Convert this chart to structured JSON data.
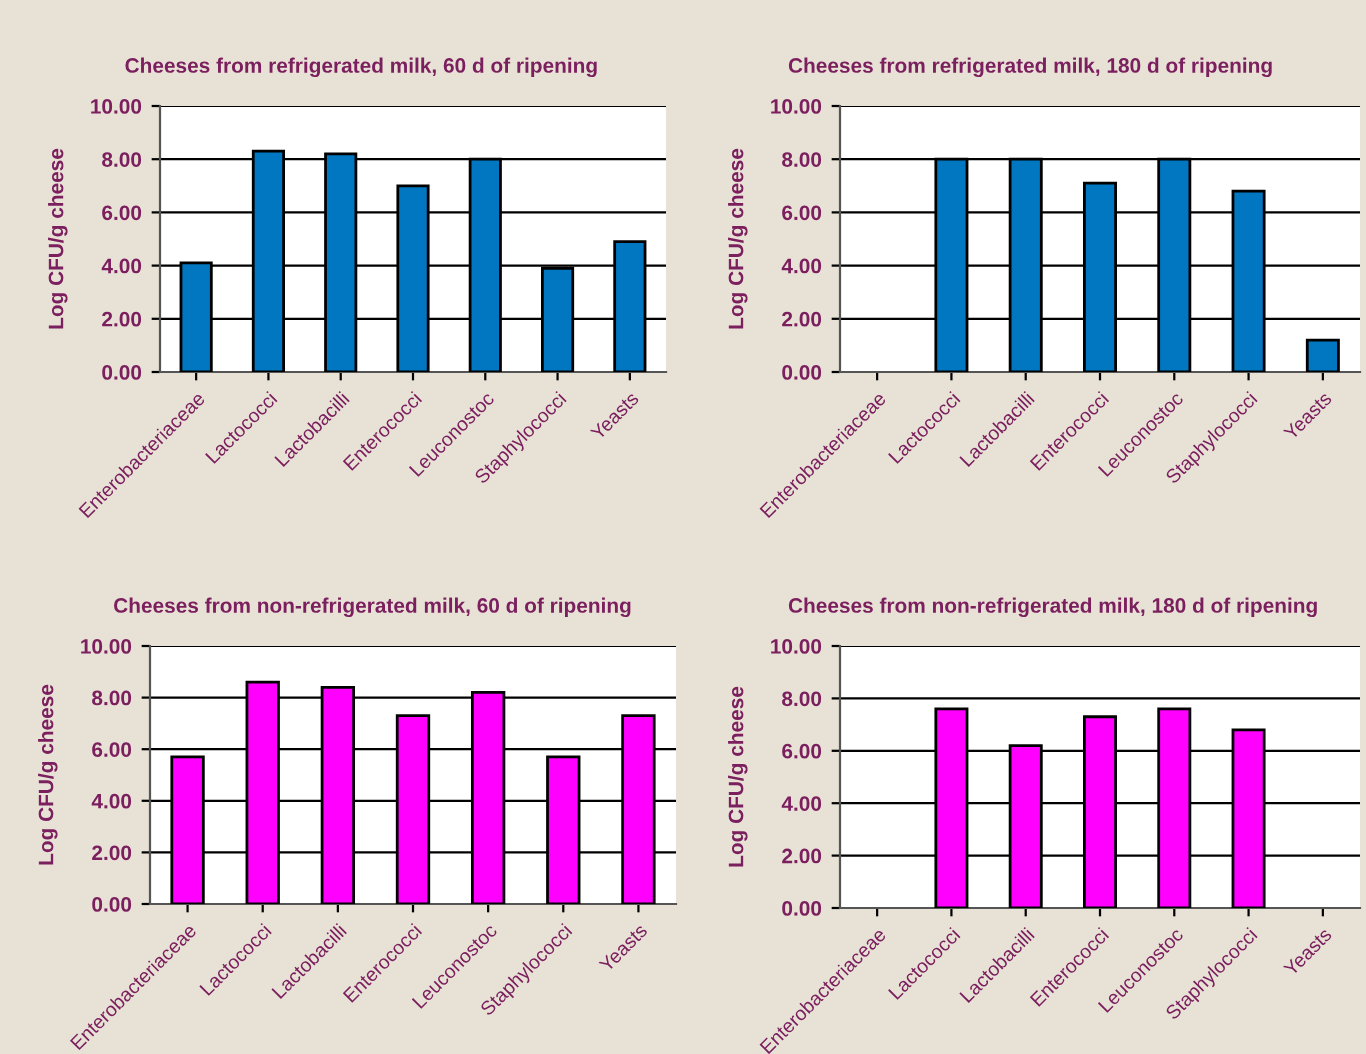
{
  "chart_data": [
    {
      "type": "bar",
      "title": "Cheeses from refrigerated milk, 60 d of ripening",
      "ylabel": "Log CFU/g cheese",
      "categories": [
        "Enterobacteriaceae",
        "Lactococci",
        "Lactobacilli",
        "Enterococci",
        "Leuconostoc",
        "Staphylococci",
        "Yeasts"
      ],
      "values": [
        4.1,
        8.3,
        8.2,
        7.0,
        8.0,
        3.9,
        4.9
      ],
      "color": "#0077c0",
      "ylim": [
        0,
        10
      ],
      "yticks": [
        {
          "value": 0,
          "label": "0.00"
        },
        {
          "value": 2,
          "label": "2.00"
        },
        {
          "value": 4,
          "label": "4.00"
        },
        {
          "value": 6,
          "label": "6.00"
        },
        {
          "value": 8,
          "label": "8.00"
        },
        {
          "value": 10,
          "label": "10.00"
        }
      ],
      "grid": "y"
    },
    {
      "type": "bar",
      "title": "Cheeses from refrigerated milk, 180 d of ripening",
      "ylabel": "Log CFU/g cheese",
      "categories": [
        "Enterobacteriaceae",
        "Lactococci",
        "Lactobacilli",
        "Enterococci",
        "Leuconostoc",
        "Staphylococci",
        "Yeasts"
      ],
      "values": [
        null,
        8.0,
        8.0,
        7.1,
        8.0,
        6.8,
        1.2
      ],
      "color": "#0077c0",
      "ylim": [
        0,
        10
      ],
      "yticks": [
        {
          "value": 0,
          "label": "0.00"
        },
        {
          "value": 2,
          "label": "2.00"
        },
        {
          "value": 4,
          "label": "4.00"
        },
        {
          "value": 6,
          "label": "6.00"
        },
        {
          "value": 8,
          "label": "8.00"
        },
        {
          "value": 10,
          "label": "10.00"
        }
      ],
      "grid": "y"
    },
    {
      "type": "bar",
      "title": "Cheeses from non-refrigerated milk, 60 d of ripening",
      "ylabel": "Log CFU/g cheese",
      "categories": [
        "Enterobacteriaceae",
        "Lactococci",
        "Lactobacilli",
        "Enterococci",
        "Leuconostoc",
        "Staphylococci",
        "Yeasts"
      ],
      "values": [
        5.7,
        8.6,
        8.4,
        7.3,
        8.2,
        5.7,
        7.3
      ],
      "color": "#ff00ff",
      "ylim": [
        0,
        10
      ],
      "yticks": [
        {
          "value": 0,
          "label": "0.00"
        },
        {
          "value": 2,
          "label": "2.00"
        },
        {
          "value": 4,
          "label": "4.00"
        },
        {
          "value": 6,
          "label": "6.00"
        },
        {
          "value": 8,
          "label": "8.00"
        },
        {
          "value": 10,
          "label": "10.00"
        }
      ],
      "grid": "y"
    },
    {
      "type": "bar",
      "title": "Cheeses from non-refrigerated milk, 180 d of ripening",
      "ylabel": "Log CFU/g cheese",
      "categories": [
        "Enterobacteriaceae",
        "Lactococci",
        "Lactobacilli",
        "Enterococci",
        "Leuconostoc",
        "Staphylococci",
        "Yeasts"
      ],
      "values": [
        null,
        7.6,
        6.2,
        7.3,
        7.6,
        6.8,
        null
      ],
      "color": "#ff00ff",
      "ylim": [
        0,
        10
      ],
      "yticks": [
        {
          "value": 0,
          "label": "0.00"
        },
        {
          "value": 2,
          "label": "2.00"
        },
        {
          "value": 4,
          "label": "4.00"
        },
        {
          "value": 6,
          "label": "6.00"
        },
        {
          "value": 8,
          "label": "8.00"
        },
        {
          "value": 10,
          "label": "10.00"
        }
      ],
      "grid": "y"
    }
  ]
}
